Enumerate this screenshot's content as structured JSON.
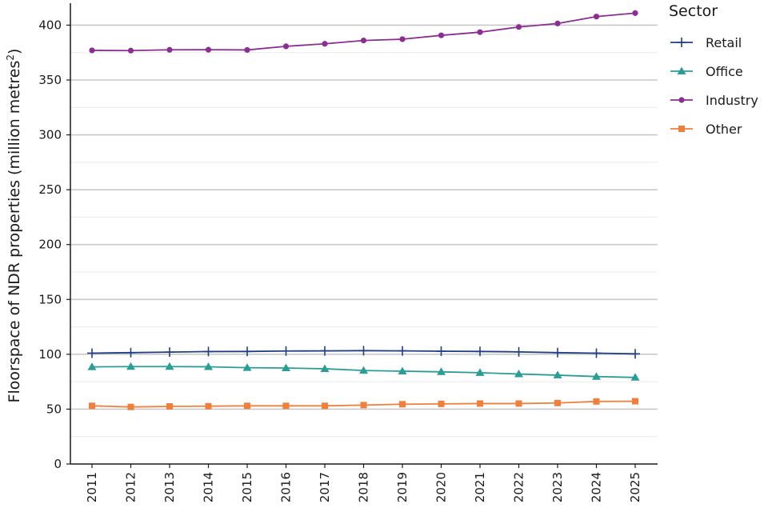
{
  "chart_data": {
    "type": "line",
    "x": [
      2011,
      2012,
      2013,
      2014,
      2015,
      2016,
      2017,
      2018,
      2019,
      2020,
      2021,
      2022,
      2023,
      2024,
      2025
    ],
    "ylabel_main": "Floorspace of NDR properties (million metres",
    "ylabel_sup": "2",
    "ylabel_close": ")",
    "xlabel": "",
    "ylim": [
      0,
      420
    ],
    "yticks": [
      0,
      50,
      100,
      150,
      200,
      250,
      300,
      350,
      400
    ],
    "grid": {
      "major_y": true,
      "minor_y": true,
      "x": false
    },
    "legend": {
      "title": "Sector",
      "placement": "right"
    },
    "series": [
      {
        "name": "Retail",
        "color": "#1f3f7f",
        "marker": "plus",
        "values": [
          101.0,
          101.5,
          102.0,
          102.5,
          102.6,
          103.0,
          103.1,
          103.3,
          103.1,
          102.8,
          102.6,
          102.2,
          101.5,
          101.0,
          100.4
        ]
      },
      {
        "name": "Office",
        "color": "#2a9d96",
        "marker": "triangle",
        "values": [
          88.5,
          88.8,
          88.8,
          88.6,
          87.8,
          87.5,
          86.8,
          85.2,
          84.6,
          84.0,
          83.2,
          82.0,
          81.0,
          79.7,
          78.9
        ]
      },
      {
        "name": "Industry",
        "color": "#8b2d92",
        "marker": "circle",
        "values": [
          377.0,
          376.8,
          377.5,
          377.6,
          377.4,
          380.7,
          383.0,
          386.0,
          387.2,
          390.7,
          393.6,
          398.3,
          401.5,
          407.8,
          411.0
        ]
      },
      {
        "name": "Other",
        "color": "#f07f3c",
        "marker": "square",
        "values": [
          53.0,
          52.0,
          52.5,
          52.7,
          53.0,
          53.0,
          53.0,
          53.7,
          54.5,
          54.8,
          55.1,
          55.1,
          55.6,
          57.0,
          57.2
        ]
      }
    ]
  }
}
